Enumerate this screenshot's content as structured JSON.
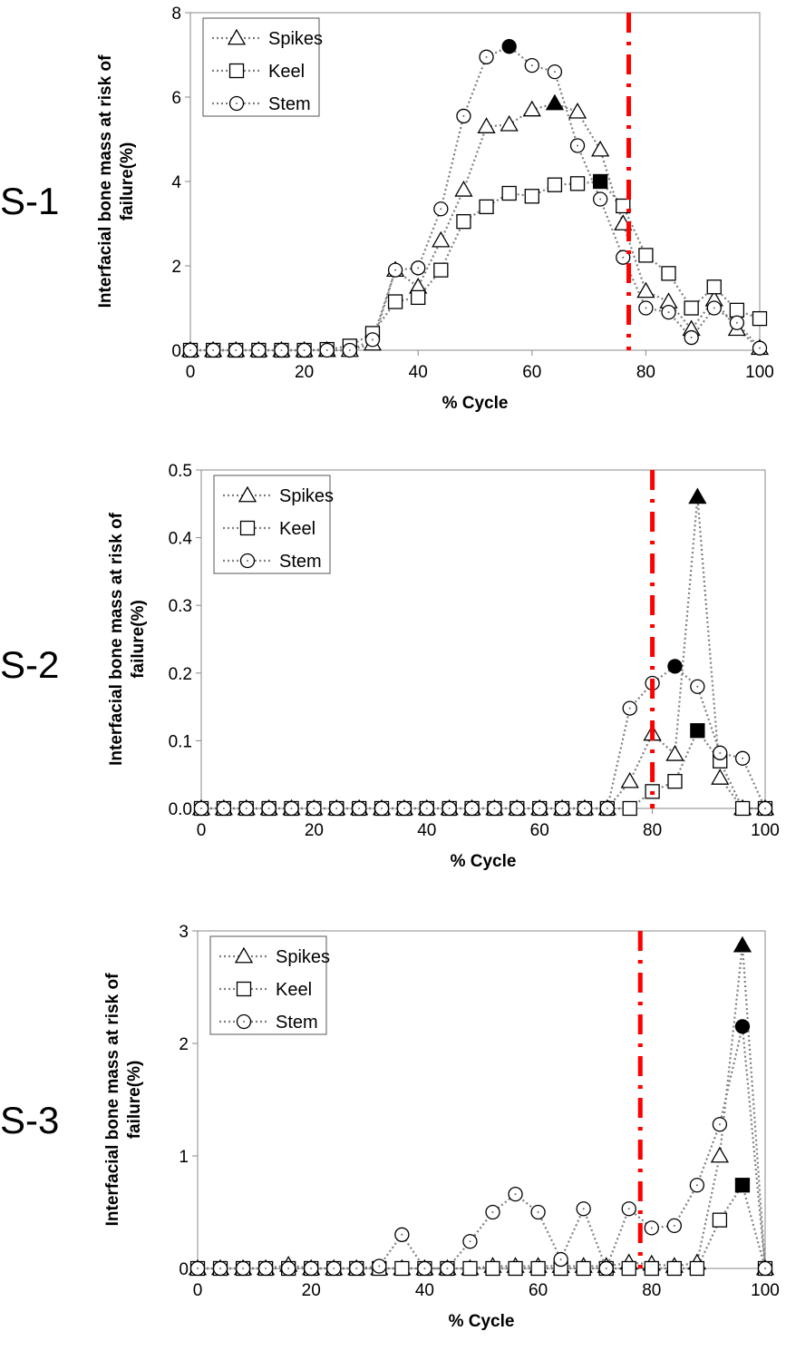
{
  "chart_data": [
    {
      "type": "line",
      "panel_label": "S-1",
      "xlabel": "% Cycle",
      "ylabel_lines": [
        "Interfacial bone mass at risk of",
        "failure(%)"
      ],
      "xlim": [
        0,
        100
      ],
      "ylim": [
        0,
        8
      ],
      "xticks": [
        "0",
        "20",
        "40",
        "60",
        "80",
        "100"
      ],
      "yticks": [
        "0",
        "2",
        "4",
        "6",
        "8"
      ],
      "grid": false,
      "legend": "top-left",
      "ref_line_x": 77,
      "ref_line_color": "#ff0000",
      "x": [
        0,
        4,
        8,
        12,
        16,
        20,
        24,
        28,
        32,
        36,
        40,
        44,
        48,
        52,
        56,
        60,
        64,
        68,
        72,
        76,
        80,
        84,
        88,
        92,
        96,
        100
      ],
      "series": [
        {
          "name": "Spikes",
          "marker": "triangle",
          "values": [
            0,
            0,
            0,
            0,
            0,
            0,
            0,
            0,
            0.15,
            1.9,
            1.5,
            2.6,
            3.8,
            5.3,
            5.35,
            5.7,
            5.85,
            5.65,
            4.75,
            3.0,
            1.4,
            1.15,
            0.5,
            1.2,
            0.5,
            0.05
          ],
          "peak_index": 16
        },
        {
          "name": "Keel",
          "marker": "square",
          "values": [
            0,
            0,
            0,
            0,
            0,
            0,
            0.02,
            0.1,
            0.4,
            1.15,
            1.25,
            1.9,
            3.05,
            3.4,
            3.72,
            3.65,
            3.92,
            3.95,
            4.0,
            3.42,
            2.25,
            1.82,
            1.0,
            1.5,
            0.95,
            0.75
          ],
          "peak_index": 18
        },
        {
          "name": "Stem",
          "marker": "circle",
          "values": [
            0,
            0,
            0,
            0,
            0,
            0,
            0,
            0,
            0.25,
            1.9,
            1.95,
            3.35,
            5.55,
            6.95,
            7.2,
            6.75,
            6.6,
            4.85,
            3.58,
            2.2,
            1.0,
            0.9,
            0.3,
            1.0,
            0.65,
            0.05
          ],
          "peak_index": 14
        }
      ]
    },
    {
      "type": "line",
      "panel_label": "S-2",
      "xlabel": "% Cycle",
      "ylabel_lines": [
        "Interfacial bone mass at risk of",
        "failure(%)"
      ],
      "xlim": [
        0,
        100
      ],
      "ylim": [
        0,
        0.5
      ],
      "xticks": [
        "0",
        "20",
        "40",
        "60",
        "80",
        "100"
      ],
      "yticks": [
        "0.0",
        "0.1",
        "0.2",
        "0.3",
        "0.4",
        "0.5"
      ],
      "grid": false,
      "legend": "top-left",
      "ref_line_x": 80,
      "ref_line_color": "#ff0000",
      "x": [
        0,
        4,
        8,
        12,
        16,
        20,
        24,
        28,
        32,
        36,
        40,
        44,
        48,
        52,
        56,
        60,
        64,
        68,
        72,
        76,
        80,
        84,
        88,
        92,
        96,
        100
      ],
      "series": [
        {
          "name": "Spikes",
          "marker": "triangle",
          "values": [
            0,
            0,
            0,
            0,
            0,
            0,
            0,
            0,
            0,
            0,
            0,
            0,
            0,
            0,
            0,
            0,
            0,
            0,
            0,
            0.04,
            0.11,
            0.08,
            0.46,
            0.045,
            0,
            0
          ],
          "peak_index": 22
        },
        {
          "name": "Keel",
          "marker": "square",
          "values": [
            0,
            0,
            0,
            0,
            0,
            0,
            0,
            0,
            0,
            0,
            0,
            0,
            0,
            0,
            0,
            0,
            0,
            0,
            0,
            0,
            0.025,
            0.04,
            0.115,
            0.07,
            0,
            0
          ],
          "peak_index": 22
        },
        {
          "name": "Stem",
          "marker": "circle",
          "values": [
            0,
            0,
            0,
            0,
            0,
            0,
            0,
            0,
            0,
            0,
            0,
            0,
            0,
            0,
            0,
            0,
            0,
            0,
            0,
            0.148,
            0.185,
            0.21,
            0.18,
            0.082,
            0.074,
            0
          ],
          "peak_index": 21
        }
      ]
    },
    {
      "type": "line",
      "panel_label": "S-3",
      "xlabel": "% Cycle",
      "ylabel_lines": [
        "Interfacial bone mass at risk of",
        "failure(%)"
      ],
      "xlim": [
        0,
        100
      ],
      "ylim": [
        0,
        3
      ],
      "xticks": [
        "0",
        "20",
        "40",
        "60",
        "80",
        "100"
      ],
      "yticks": [
        "0",
        "1",
        "2",
        "3"
      ],
      "grid": false,
      "legend": "top-left",
      "ref_line_x": 78,
      "ref_line_color": "#ff0000",
      "x": [
        0,
        4,
        8,
        12,
        16,
        20,
        24,
        28,
        32,
        36,
        40,
        44,
        48,
        52,
        56,
        60,
        64,
        68,
        72,
        76,
        80,
        84,
        88,
        92,
        96,
        100
      ],
      "series": [
        {
          "name": "Spikes",
          "marker": "triangle",
          "values": [
            0,
            0,
            0,
            0,
            0.03,
            0,
            0,
            0,
            0,
            0,
            0,
            0,
            0,
            0.02,
            0.02,
            0.02,
            0.02,
            0.02,
            0.02,
            0.05,
            0.04,
            0.02,
            0.05,
            1.0,
            2.87,
            0
          ],
          "peak_index": 24
        },
        {
          "name": "Keel",
          "marker": "square",
          "values": [
            0,
            0,
            0,
            0,
            0,
            0,
            0,
            0,
            0,
            0,
            0,
            0,
            0,
            0,
            0,
            0,
            0,
            0,
            0,
            0,
            0,
            0,
            0,
            0.43,
            0.74,
            0
          ],
          "peak_index": 24
        },
        {
          "name": "Stem",
          "marker": "circle",
          "values": [
            0,
            0,
            0,
            0,
            0,
            0,
            0,
            0,
            0.02,
            0.3,
            0,
            0,
            0.24,
            0.5,
            0.66,
            0.5,
            0.08,
            0.53,
            0,
            0.53,
            0.36,
            0.38,
            0.74,
            1.28,
            2.15,
            0
          ],
          "peak_index": 24
        }
      ]
    }
  ]
}
